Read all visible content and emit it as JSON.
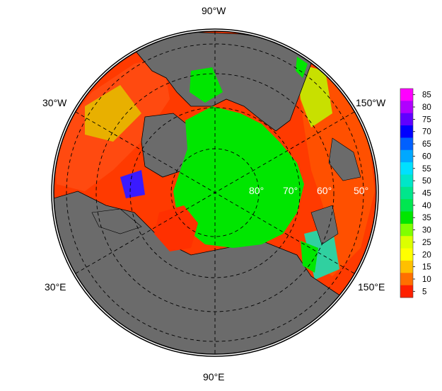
{
  "map": {
    "projection": "north polar stereographic",
    "longitude_labels": {
      "top": "90°W",
      "left_upper": "30°W",
      "right_upper": "150°W",
      "left_lower": "30°E",
      "right_lower": "150°E",
      "bottom": "90°E"
    },
    "latitude_labels": [
      "80°",
      "70°",
      "60°",
      "50°"
    ],
    "colors": {
      "land": "#6b6b6b",
      "ice": "#00e600",
      "coast": "#000000",
      "graticule": "#000000"
    }
  },
  "colorbar": {
    "ticks": [
      "85",
      "80",
      "75",
      "70",
      "65",
      "60",
      "55",
      "50",
      "45",
      "40",
      "35",
      "30",
      "25",
      "20",
      "15",
      "10",
      "5"
    ],
    "colors": [
      "#ff00ff",
      "#b000ff",
      "#6000ff",
      "#0000ff",
      "#0060ff",
      "#00a8ff",
      "#00e0ff",
      "#00e6c8",
      "#00e68c",
      "#00e650",
      "#00e600",
      "#80ff00",
      "#dcff00",
      "#ffff00",
      "#ffc000",
      "#ff7000",
      "#ff2000"
    ]
  }
}
